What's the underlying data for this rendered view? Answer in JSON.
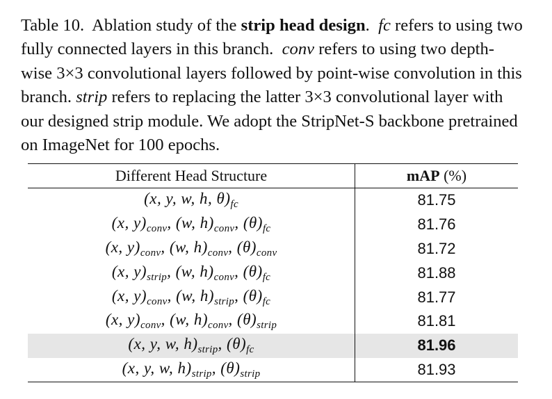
{
  "caption": {
    "label": "Table 10.",
    "lead": "Ablation study of the",
    "title": "strip head design",
    "fc_term": "fc",
    "fc_text": "refers to using two fully connected layers in this branch.",
    "conv_term": "conv",
    "conv_text": "refers to using two depth-wise 3×3 convolutional layers followed by point-wise convolution in this branch.",
    "strip_term": "strip",
    "strip_text": "refers to replacing the latter 3×3 convolutional layer with our designed strip module. We adopt the StripNet-S backbone pretrained on ImageNet for 100 epochs."
  },
  "table": {
    "header": {
      "col1": "Different Head Structure",
      "col2_metric": "mAP",
      "col2_unit": "(%)"
    },
    "rows": [
      {
        "groups": [
          {
            "vars": "(x, y, w, h, θ)",
            "sub": "fc"
          }
        ],
        "map": "81.75",
        "highlight": false
      },
      {
        "groups": [
          {
            "vars": "(x, y)",
            "sub": "conv"
          },
          {
            "vars": "(w, h)",
            "sub": "conv"
          },
          {
            "vars": "(θ)",
            "sub": "fc"
          }
        ],
        "map": "81.76",
        "highlight": false
      },
      {
        "groups": [
          {
            "vars": "(x, y)",
            "sub": "conv"
          },
          {
            "vars": "(w, h)",
            "sub": "conv"
          },
          {
            "vars": "(θ)",
            "sub": "conv"
          }
        ],
        "map": "81.72",
        "highlight": false
      },
      {
        "groups": [
          {
            "vars": "(x, y)",
            "sub": "strip"
          },
          {
            "vars": "(w, h)",
            "sub": "conv"
          },
          {
            "vars": "(θ)",
            "sub": "fc"
          }
        ],
        "map": "81.88",
        "highlight": false
      },
      {
        "groups": [
          {
            "vars": "(x, y)",
            "sub": "conv"
          },
          {
            "vars": "(w, h)",
            "sub": "strip"
          },
          {
            "vars": "(θ)",
            "sub": "fc"
          }
        ],
        "map": "81.77",
        "highlight": false
      },
      {
        "groups": [
          {
            "vars": "(x, y)",
            "sub": "conv"
          },
          {
            "vars": "(w, h)",
            "sub": "conv"
          },
          {
            "vars": "(θ)",
            "sub": "strip"
          }
        ],
        "map": "81.81",
        "highlight": false
      },
      {
        "groups": [
          {
            "vars": "(x, y, w, h)",
            "sub": "strip"
          },
          {
            "vars": "(θ)",
            "sub": "fc"
          }
        ],
        "map": "81.96",
        "highlight": true
      },
      {
        "groups": [
          {
            "vars": "(x, y, w, h)",
            "sub": "strip"
          },
          {
            "vars": "(θ)",
            "sub": "strip"
          }
        ],
        "map": "81.93",
        "highlight": false
      }
    ]
  }
}
